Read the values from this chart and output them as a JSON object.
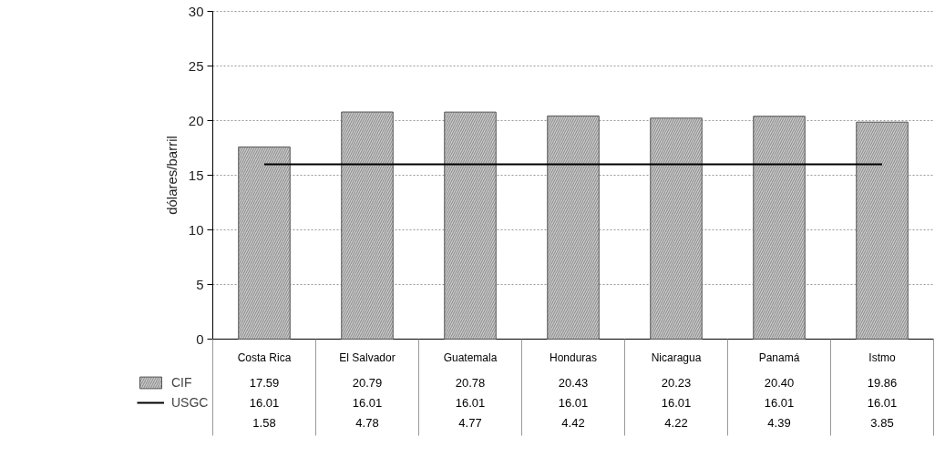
{
  "chart_data": {
    "type": "bar",
    "ylabel": "dólares/barril",
    "categories": [
      "Costa Rica",
      "El Salvador",
      "Guatemala",
      "Honduras",
      "Nicaragua",
      "Panamá",
      "Istmo"
    ],
    "series": [
      {
        "name": "CIF",
        "color": "#c8c8c8",
        "values": [
          17.59,
          20.79,
          20.78,
          20.43,
          20.23,
          20.4,
          19.86
        ],
        "value_labels": [
          "17.59",
          "20.79",
          "20.78",
          "20.43",
          "20.23",
          "20.40",
          "19.86"
        ]
      },
      {
        "name": "USGC",
        "type": "line",
        "color": "#000000",
        "values": [
          16.01,
          16.01,
          16.01,
          16.01,
          16.01,
          16.01,
          16.01
        ],
        "value_labels": [
          "16.01",
          "16.01",
          "16.01",
          "16.01",
          "16.01",
          "16.01",
          "16.01"
        ]
      }
    ],
    "annotations": [
      "1.58",
      "4.78",
      "4.77",
      "4.42",
      "4.22",
      "4.39",
      "3.85"
    ],
    "ylim": [
      0,
      30
    ],
    "yticks": [
      0,
      5,
      10,
      15,
      20,
      25,
      30
    ],
    "grid": "y",
    "legend": "bottom left"
  }
}
